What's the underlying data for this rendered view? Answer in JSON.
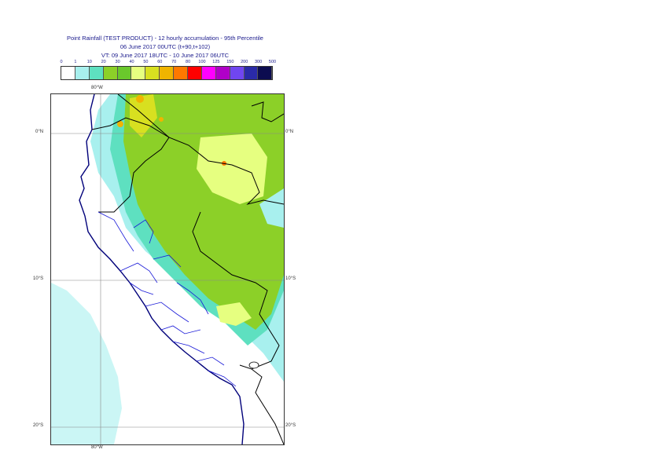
{
  "title": {
    "line1": "Point Rainfall (TEST PRODUCT) - 12 hourly accumulation - 95th Percentile",
    "line2": "06 June 2017 00UTC (t+90,t+102)",
    "line3": "VT: 09 June 2017 18UTC - 10 June 2017 06UTC"
  },
  "legend": {
    "labels": [
      "0",
      "1",
      "10",
      "20",
      "30",
      "40",
      "50",
      "60",
      "70",
      "80",
      "100",
      "125",
      "150",
      "200",
      "300",
      "500"
    ],
    "colors": [
      "#ffffff",
      "#a8f0ee",
      "#5ee0c0",
      "#8cd028",
      "#6ac82c",
      "#e6ff80",
      "#d8e020",
      "#f0b400",
      "#ff7800",
      "#ff0000",
      "#ff00ff",
      "#b000c8",
      "#7046f0",
      "#2a2aa8",
      "#0c0c50"
    ]
  },
  "axes": {
    "top_lon": "80°W",
    "bottom_lon": "80°W",
    "lat_left": [
      "0°N",
      "10°S",
      "20°S"
    ],
    "lat_right": [
      "0°N",
      "10°S",
      "20°S"
    ]
  }
}
